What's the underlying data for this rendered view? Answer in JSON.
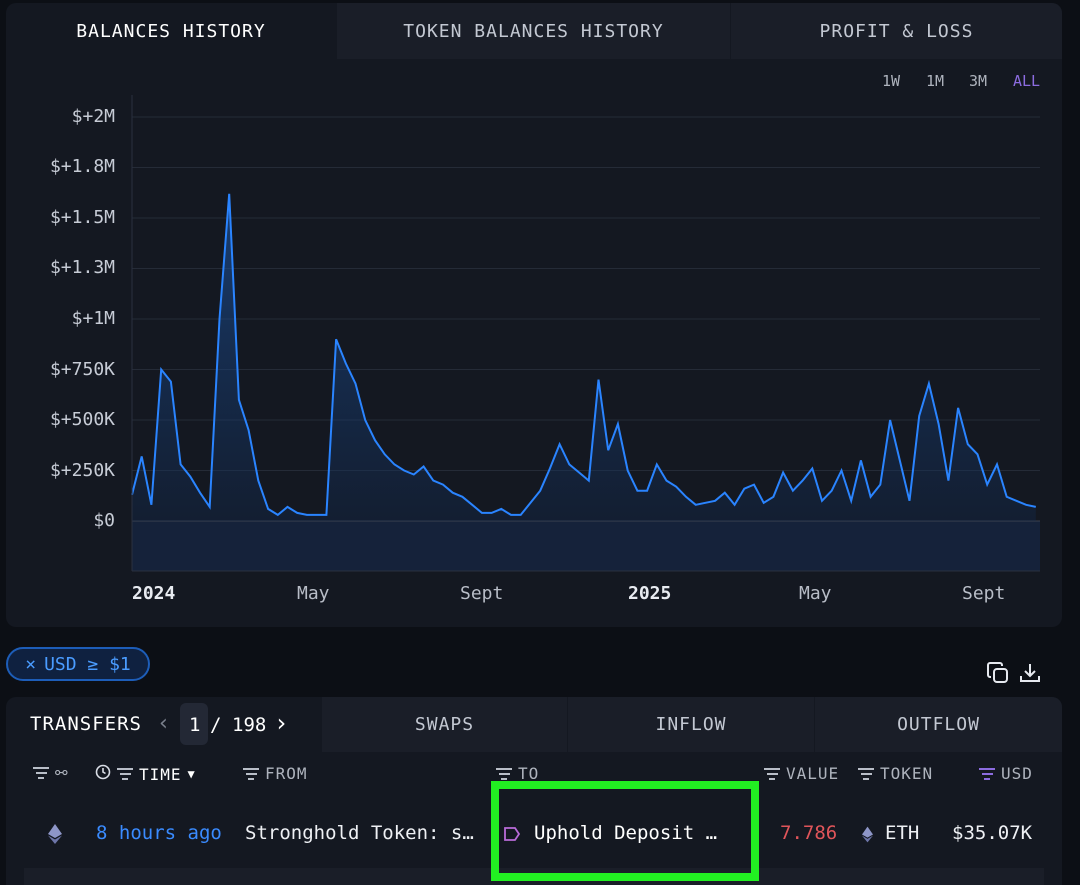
{
  "tabs": [
    {
      "label": "BALANCES HISTORY",
      "active": true
    },
    {
      "label": "TOKEN BALANCES HISTORY",
      "active": false
    },
    {
      "label": "PROFIT & LOSS",
      "active": false
    }
  ],
  "ranges": [
    {
      "label": "1W",
      "active": false
    },
    {
      "label": "1M",
      "active": false
    },
    {
      "label": "3M",
      "active": false
    },
    {
      "label": "ALL",
      "active": true
    }
  ],
  "chart_data": {
    "type": "area",
    "x_tick_labels": [
      "2024",
      "May",
      "Sept",
      "2025",
      "May",
      "Sept"
    ],
    "y_tick_labels": [
      "$+2M",
      "$+1.8M",
      "$+1.5M",
      "$+1.3M",
      "$+1M",
      "$+750K",
      "$+500K",
      "$+250K",
      "$0"
    ],
    "ylim": [
      0,
      2000000
    ],
    "x": [
      "2024-01-01",
      "2024-01-08",
      "2024-01-15",
      "2024-01-22",
      "2024-01-29",
      "2024-02-05",
      "2024-02-12",
      "2024-02-19",
      "2024-02-26",
      "2024-03-04",
      "2024-03-11",
      "2024-03-18",
      "2024-03-25",
      "2024-04-01",
      "2024-04-08",
      "2024-04-15",
      "2024-04-22",
      "2024-04-29",
      "2024-05-06",
      "2024-05-13",
      "2024-05-20",
      "2024-05-27",
      "2024-06-03",
      "2024-06-10",
      "2024-06-17",
      "2024-06-24",
      "2024-07-01",
      "2024-07-08",
      "2024-07-15",
      "2024-07-22",
      "2024-07-29",
      "2024-08-05",
      "2024-08-12",
      "2024-08-19",
      "2024-08-26",
      "2024-09-02",
      "2024-09-09",
      "2024-09-16",
      "2024-09-23",
      "2024-09-30",
      "2024-10-07",
      "2024-10-14",
      "2024-10-21",
      "2024-10-28",
      "2024-11-04",
      "2024-11-11",
      "2024-11-18",
      "2024-11-25",
      "2024-12-02",
      "2024-12-09",
      "2024-12-16",
      "2024-12-23",
      "2024-12-30",
      "2025-01-06",
      "2025-01-13",
      "2025-01-20",
      "2025-01-27",
      "2025-02-03",
      "2025-02-10",
      "2025-02-17",
      "2025-02-24",
      "2025-03-03",
      "2025-03-10",
      "2025-03-17",
      "2025-03-24",
      "2025-03-31",
      "2025-04-07",
      "2025-04-14",
      "2025-04-21",
      "2025-04-28",
      "2025-05-05",
      "2025-05-12",
      "2025-05-19",
      "2025-05-26",
      "2025-06-02",
      "2025-06-09",
      "2025-06-16",
      "2025-06-23",
      "2025-06-30",
      "2025-07-07",
      "2025-07-14",
      "2025-07-21",
      "2025-07-28",
      "2025-08-04",
      "2025-08-11",
      "2025-08-18",
      "2025-08-25",
      "2025-09-01",
      "2025-09-08",
      "2025-09-15",
      "2025-09-22",
      "2025-09-29",
      "2025-10-06",
      "2025-10-13"
    ],
    "values": [
      130000,
      320000,
      80000,
      750000,
      690000,
      280000,
      220000,
      140000,
      70000,
      1000000,
      1620000,
      600000,
      450000,
      200000,
      60000,
      30000,
      70000,
      40000,
      30000,
      30000,
      30000,
      900000,
      780000,
      680000,
      500000,
      400000,
      330000,
      280000,
      250000,
      230000,
      270000,
      200000,
      180000,
      140000,
      120000,
      80000,
      40000,
      40000,
      60000,
      30000,
      30000,
      90000,
      150000,
      260000,
      380000,
      280000,
      240000,
      200000,
      700000,
      350000,
      480000,
      250000,
      150000,
      150000,
      280000,
      200000,
      170000,
      120000,
      80000,
      90000,
      100000,
      140000,
      80000,
      160000,
      180000,
      90000,
      120000,
      240000,
      150000,
      200000,
      260000,
      100000,
      150000,
      250000,
      100000,
      300000,
      120000,
      180000,
      500000,
      300000,
      100000,
      520000,
      680000,
      480000,
      200000,
      560000,
      380000,
      330000,
      180000,
      280000,
      120000,
      100000,
      80000,
      70000
    ],
    "series_color": "#2a84ff"
  },
  "filter": {
    "label": "USD ≥ $1",
    "close_glyph": "×"
  },
  "transfers_bar": {
    "title": "TRANSFERS",
    "page_current": "1",
    "page_sep": "/",
    "page_total": "198",
    "tabs": [
      "SWAPS",
      "INFLOW",
      "OUTFLOW"
    ]
  },
  "columns": {
    "time": "TIME",
    "from": "FROM",
    "to": "TO",
    "value": "VALUE",
    "token": "TOKEN",
    "usd": "USD"
  },
  "rows": [
    {
      "time": "8 hours ago",
      "from": "Stronghold Token: s…",
      "to": "Uphold Deposit …",
      "value": "7.786",
      "token": "ETH",
      "usd": "$35.07K"
    }
  ],
  "colors": {
    "accent": "#2a84ff",
    "purple": "#8c6ce0",
    "value_red": "#e0555a",
    "highlight": "#22f022"
  },
  "icons": {
    "copy": "copy-icon",
    "download": "download-icon",
    "eth": "eth-icon"
  }
}
